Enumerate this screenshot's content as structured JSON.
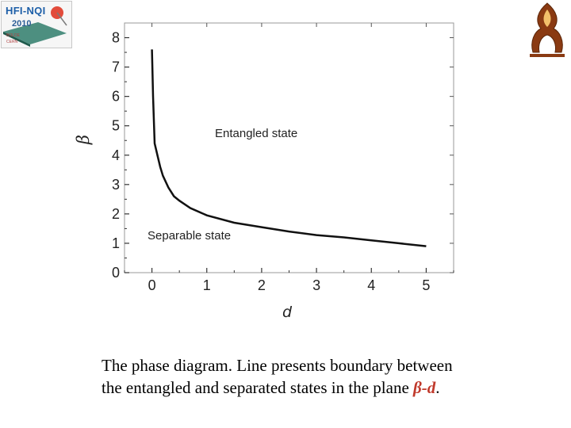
{
  "logo_left": {
    "title": "HFI-NQI",
    "year": "2010",
    "line1": "BOLDE",
    "line2": "CERN"
  },
  "chart_data": {
    "type": "line",
    "xlabel": "d",
    "ylabel": "β",
    "xlim": [
      -0.5,
      5.5
    ],
    "ylim": [
      0,
      8.5
    ],
    "xticks": [
      0,
      1,
      2,
      3,
      4,
      5
    ],
    "yticks": [
      0,
      1,
      2,
      3,
      4,
      5,
      6,
      7,
      8
    ],
    "grid": false,
    "series": [
      {
        "x": [
          0.0,
          0.02,
          0.05,
          0.1,
          0.15,
          0.2,
          0.3,
          0.4,
          0.5,
          0.7,
          1.0,
          1.5,
          2.0,
          2.5,
          3.0,
          3.5,
          4.0,
          4.5,
          5.0
        ],
        "y": [
          7.6,
          6.0,
          4.4,
          4.0,
          3.6,
          3.3,
          2.9,
          2.6,
          2.45,
          2.2,
          1.95,
          1.7,
          1.55,
          1.4,
          1.28,
          1.2,
          1.1,
          1.0,
          0.9
        ]
      }
    ],
    "annotations": [
      {
        "text": "Entangled state",
        "x": 2.0,
        "y": 4.7
      },
      {
        "text": "Separable state",
        "x": 0.7,
        "y": 1.15
      }
    ]
  },
  "caption": {
    "text": "The phase diagram. Line presents boundary between the entangled and separated states in the plane ",
    "highlight": "β-d",
    "end": "."
  }
}
